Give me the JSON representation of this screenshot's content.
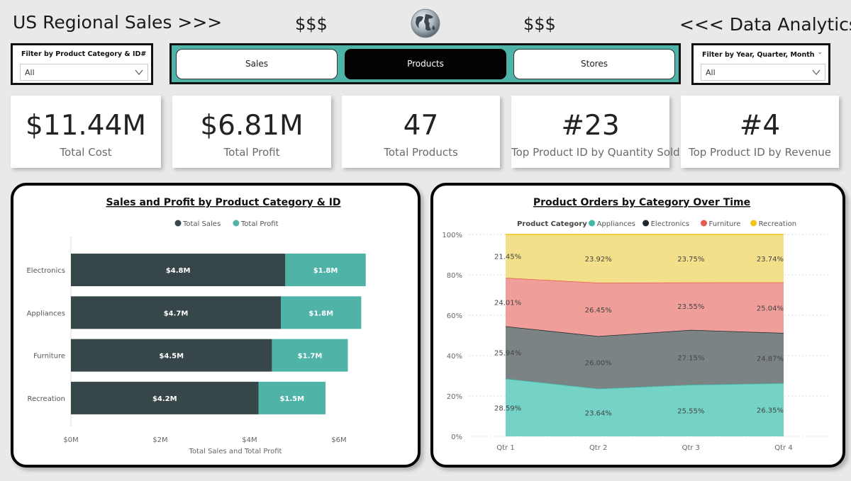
{
  "header": {
    "title_left": "US Regional Sales >>>",
    "title_right": "<<< Data Analytics",
    "dollars_left": "$$$",
    "dollars_right": "$$$"
  },
  "filters": {
    "category": {
      "label": "Filter by Product Category & ID#",
      "value": "All"
    },
    "period": {
      "label": "Filter by Year, Quarter, Month",
      "value": "All"
    }
  },
  "nav": {
    "sales": "Sales",
    "products": "Products",
    "stores": "Stores",
    "active": "Products"
  },
  "kpis": [
    {
      "value": "$11.44M",
      "label": "Total Cost"
    },
    {
      "value": "$6.81M",
      "label": "Total Profit"
    },
    {
      "value": "47",
      "label": "Total Products"
    },
    {
      "value": "#23",
      "label": "Top Product ID by Quantity Sold"
    },
    {
      "value": "#4",
      "label": "Top Product ID by Revenue"
    }
  ],
  "colors": {
    "sales": "#374649",
    "profit": "#4fb3a8",
    "appliances": "#74d2c6",
    "electronics": "#7b8385",
    "furniture": "#ef9e9a",
    "recreation": "#f3e08a",
    "nav_bg": "#4fb3a8"
  },
  "chart_data": [
    {
      "type": "bar",
      "orientation": "horizontal",
      "stacked": true,
      "title": "Sales and Profit by Product Category & ID",
      "categories": [
        "Electronics",
        "Appliances",
        "Furniture",
        "Recreation"
      ],
      "series": [
        {
          "name": "Total Sales",
          "values": [
            4.8,
            4.7,
            4.5,
            4.2
          ],
          "labels": [
            "$4.8M",
            "$4.7M",
            "$4.5M",
            "$4.2M"
          ]
        },
        {
          "name": "Total Profit",
          "values": [
            1.8,
            1.8,
            1.7,
            1.5
          ],
          "labels": [
            "$1.8M",
            "$1.8M",
            "$1.7M",
            "$1.5M"
          ]
        }
      ],
      "xlabel": "Total Sales and Total Profit",
      "xlim": [
        0,
        6.7
      ],
      "xticks": [
        0,
        2,
        4,
        6
      ],
      "xtick_labels": [
        "$0M",
        "$2M",
        "$4M",
        "$6M"
      ],
      "legend": "top-center"
    },
    {
      "type": "area",
      "stacked_percent": true,
      "title": "Product Orders by Category Over Time",
      "legend_title": "Product Category",
      "categories": [
        "Qtr 1",
        "Qtr 2",
        "Qtr 3",
        "Qtr 4"
      ],
      "series": [
        {
          "name": "Appliances",
          "values": [
            28.59,
            23.64,
            25.55,
            26.35
          ],
          "labels": [
            "28.59%",
            "23.64%",
            "25.55%",
            "26.35%"
          ]
        },
        {
          "name": "Electronics",
          "values": [
            25.94,
            26.0,
            27.15,
            24.87
          ],
          "labels": [
            "25.94%",
            "26.00%",
            "27.15%",
            "24.87%"
          ]
        },
        {
          "name": "Furniture",
          "values": [
            24.01,
            26.45,
            23.55,
            25.04
          ],
          "labels": [
            "24.01%",
            "26.45%",
            "23.55%",
            "25.04%"
          ]
        },
        {
          "name": "Recreation",
          "values": [
            21.45,
            23.92,
            23.75,
            23.74
          ],
          "labels": [
            "21.45%",
            "23.92%",
            "23.75%",
            "23.74%"
          ]
        }
      ],
      "ylim": [
        0,
        100
      ],
      "yticks": [
        0,
        20,
        40,
        60,
        80,
        100
      ],
      "ytick_labels": [
        "0%",
        "20%",
        "40%",
        "60%",
        "80%",
        "100%"
      ],
      "legend": "top-center",
      "grid": true
    }
  ]
}
